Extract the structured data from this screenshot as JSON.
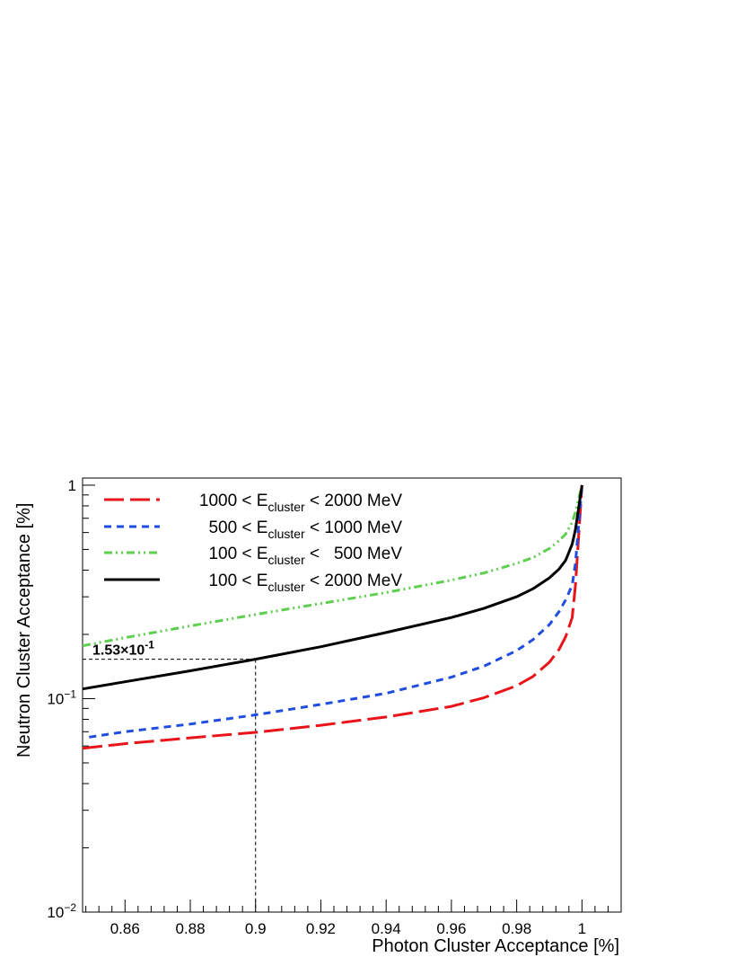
{
  "chart_data": {
    "type": "line",
    "xlabel": "Photon Cluster Acceptance [%]",
    "ylabel": "Neutron Cluster Acceptance [%]",
    "xlim": [
      0.847,
      1.012
    ],
    "ylim": [
      0.01,
      1.08
    ],
    "yscale": "log",
    "grid": false,
    "legend_position": "top-left",
    "x_ticks": [
      0.86,
      0.88,
      0.9,
      0.92,
      0.94,
      0.96,
      0.98,
      1
    ],
    "x_tick_labels": [
      "0.86",
      "0.88",
      "0.9",
      "0.92",
      "0.94",
      "0.96",
      "0.98",
      "1"
    ],
    "y_tick_labels": [
      {
        "value": 0.01,
        "mantissa": "10",
        "exponent": "−2"
      },
      {
        "value": 0.1,
        "mantissa": "10",
        "exponent": "−1"
      },
      {
        "value": 1,
        "mantissa": "1",
        "exponent": ""
      }
    ],
    "series": [
      {
        "name_pre": "1000 < E",
        "name_sub": "cluster",
        "name_post": " < 2000 MeV",
        "color": "#e8141a",
        "dash": "22,7",
        "x": [
          0.847,
          0.86,
          0.88,
          0.9,
          0.92,
          0.94,
          0.96,
          0.97,
          0.98,
          0.985,
          0.99,
          0.993,
          0.995,
          0.997,
          0.998,
          1.0
        ],
        "y": [
          0.0585,
          0.0615,
          0.0655,
          0.0695,
          0.075,
          0.082,
          0.092,
          0.101,
          0.115,
          0.127,
          0.148,
          0.17,
          0.195,
          0.24,
          0.34,
          1.0
        ]
      },
      {
        "name_pre": "500 < E",
        "name_sub": "cluster",
        "name_post": " < 1000 MeV",
        "color": "#1f4de0",
        "dash": "8,6",
        "x": [
          0.849,
          0.86,
          0.88,
          0.9,
          0.92,
          0.94,
          0.96,
          0.97,
          0.98,
          0.985,
          0.99,
          0.993,
          0.995,
          0.997,
          0.998,
          1.0
        ],
        "y": [
          0.066,
          0.07,
          0.076,
          0.084,
          0.094,
          0.106,
          0.126,
          0.142,
          0.168,
          0.189,
          0.222,
          0.256,
          0.29,
          0.34,
          0.43,
          1.0
        ]
      },
      {
        "name_pre": "100 < E",
        "name_sub": "cluster",
        "name_post": " <   500 MeV",
        "color": "#5fcf4f",
        "dash": "9,4,2,4,2,4",
        "x": [
          0.847,
          0.86,
          0.88,
          0.9,
          0.92,
          0.94,
          0.96,
          0.97,
          0.98,
          0.985,
          0.99,
          0.993,
          0.995,
          0.997,
          0.998,
          1.0
        ],
        "y": [
          0.177,
          0.193,
          0.219,
          0.248,
          0.279,
          0.314,
          0.359,
          0.388,
          0.43,
          0.458,
          0.505,
          0.55,
          0.59,
          0.67,
          0.75,
          1.0
        ]
      },
      {
        "name_pre": "100 < E",
        "name_sub": "cluster",
        "name_post": " < 2000 MeV",
        "color": "#000000",
        "dash": "",
        "x": [
          0.847,
          0.86,
          0.88,
          0.9,
          0.92,
          0.94,
          0.96,
          0.97,
          0.98,
          0.985,
          0.99,
          0.993,
          0.995,
          0.997,
          0.998,
          1.0
        ],
        "y": [
          0.111,
          0.12,
          0.135,
          0.153,
          0.175,
          0.204,
          0.24,
          0.265,
          0.3,
          0.327,
          0.368,
          0.405,
          0.445,
          0.53,
          0.62,
          1.0
        ]
      }
    ],
    "annotation": {
      "mantissa": "1.53×10",
      "exponent": "-1",
      "x": 0.9,
      "y": 0.153
    }
  }
}
